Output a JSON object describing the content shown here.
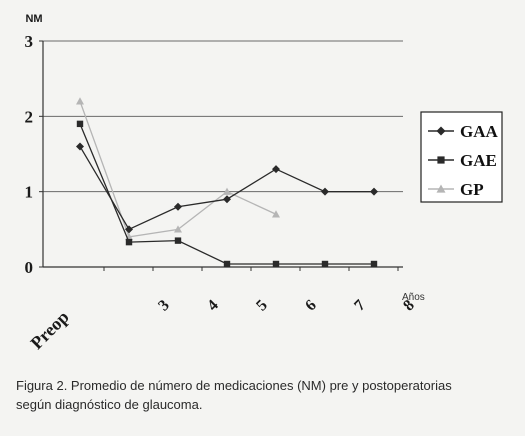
{
  "chart_data": {
    "type": "line",
    "ylabel": "NM",
    "xlabel": "",
    "x_unit_label": "Años",
    "categories": [
      "Preop",
      "3",
      "4",
      "5",
      "6",
      "7",
      "8"
    ],
    "yticks": [
      "0",
      "1",
      "2",
      "3"
    ],
    "ylim": [
      0,
      3
    ],
    "grid": "horizontal",
    "legend_position": "right",
    "series": [
      {
        "name": "GAA",
        "marker": "diamond",
        "color": "#2a2a2a",
        "values": [
          1.6,
          0.5,
          0.8,
          0.9,
          1.3,
          1.0,
          1.0
        ]
      },
      {
        "name": "GAE",
        "marker": "square",
        "color": "#2a2a2a",
        "values": [
          1.9,
          0.33,
          0.35,
          0.04,
          0.04,
          0.04,
          0.04
        ]
      },
      {
        "name": "GP",
        "marker": "triangle",
        "color": "#b5b5b5",
        "values": [
          2.2,
          0.4,
          0.5,
          1.0,
          0.7,
          null,
          null
        ]
      }
    ]
  },
  "caption": {
    "line1": "Figura 2. Promedio de número de medicaciones (NM) pre y postoperatorias",
    "line2": "según diagnóstico de glaucoma."
  }
}
